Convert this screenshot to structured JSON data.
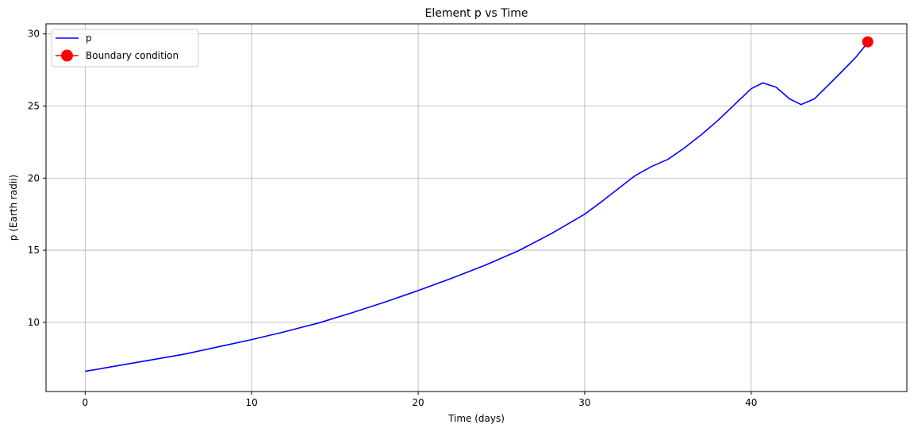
{
  "chart_data": {
    "type": "line",
    "title": "Element p vs Time",
    "xlabel": "Time (days)",
    "ylabel": "p (Earth radii)",
    "xlim": [
      -2.35,
      49.35
    ],
    "ylim": [
      5.2,
      30.7
    ],
    "xticks": [
      0,
      10,
      20,
      30,
      40
    ],
    "yticks": [
      10,
      15,
      20,
      25,
      30
    ],
    "grid": true,
    "legend_position": "upper left",
    "series": [
      {
        "name": "p",
        "color": "#0000ff",
        "style": "line",
        "x": [
          0,
          2,
          4,
          6,
          8,
          10,
          12,
          14,
          16,
          18,
          20,
          22,
          24,
          26,
          28,
          30,
          31,
          32,
          33,
          34,
          35,
          36,
          37,
          38,
          39,
          40,
          40.7,
          41.5,
          42.3,
          43,
          43.8,
          44.5,
          45.5,
          46.3,
          47
        ],
        "y": [
          6.6,
          7.0,
          7.4,
          7.8,
          8.3,
          8.8,
          9.35,
          9.95,
          10.65,
          11.4,
          12.2,
          13.05,
          13.95,
          14.95,
          16.15,
          17.5,
          18.35,
          19.25,
          20.15,
          20.8,
          21.3,
          22.1,
          23.0,
          24.0,
          25.1,
          26.2,
          26.6,
          26.3,
          25.5,
          25.1,
          25.5,
          26.3,
          27.45,
          28.4,
          29.4
        ]
      },
      {
        "name": "Boundary condition",
        "color": "#ff0000",
        "style": "marker",
        "x": [
          47
        ],
        "y": [
          29.45
        ]
      }
    ]
  }
}
